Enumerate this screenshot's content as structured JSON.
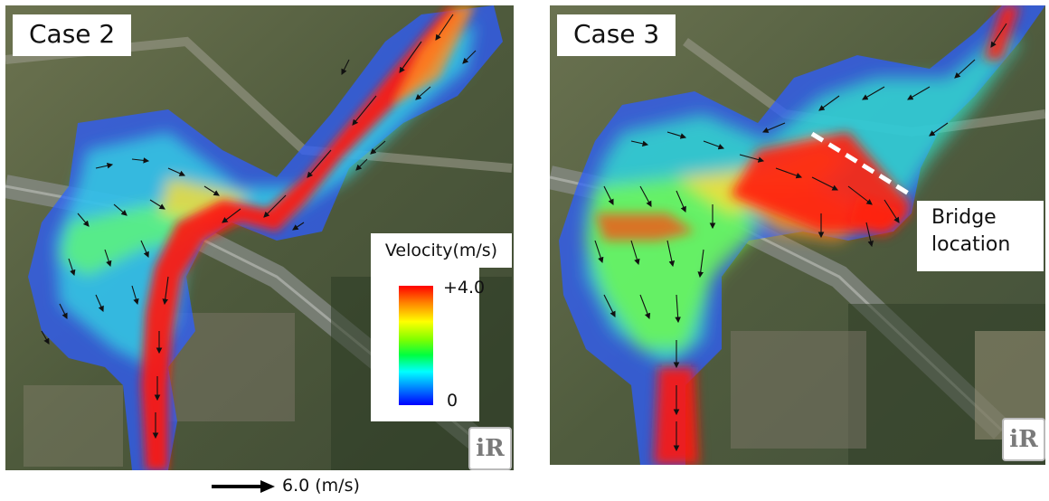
{
  "panels": {
    "left": {
      "label": "Case 2"
    },
    "right": {
      "label": "Case 3",
      "annotation": "Bridge location",
      "annotation_lines": [
        "Bridge",
        "location"
      ]
    }
  },
  "legend": {
    "title": "Velocity(m/s)",
    "max_label": "+4.0",
    "min_label": "0",
    "colors": [
      "#ff0000",
      "#ffff00",
      "#00ff40",
      "#00ffff",
      "#0000ff"
    ]
  },
  "scale": {
    "label": "6.0 (m/s)"
  },
  "logo": {
    "glyph": "iR"
  }
}
